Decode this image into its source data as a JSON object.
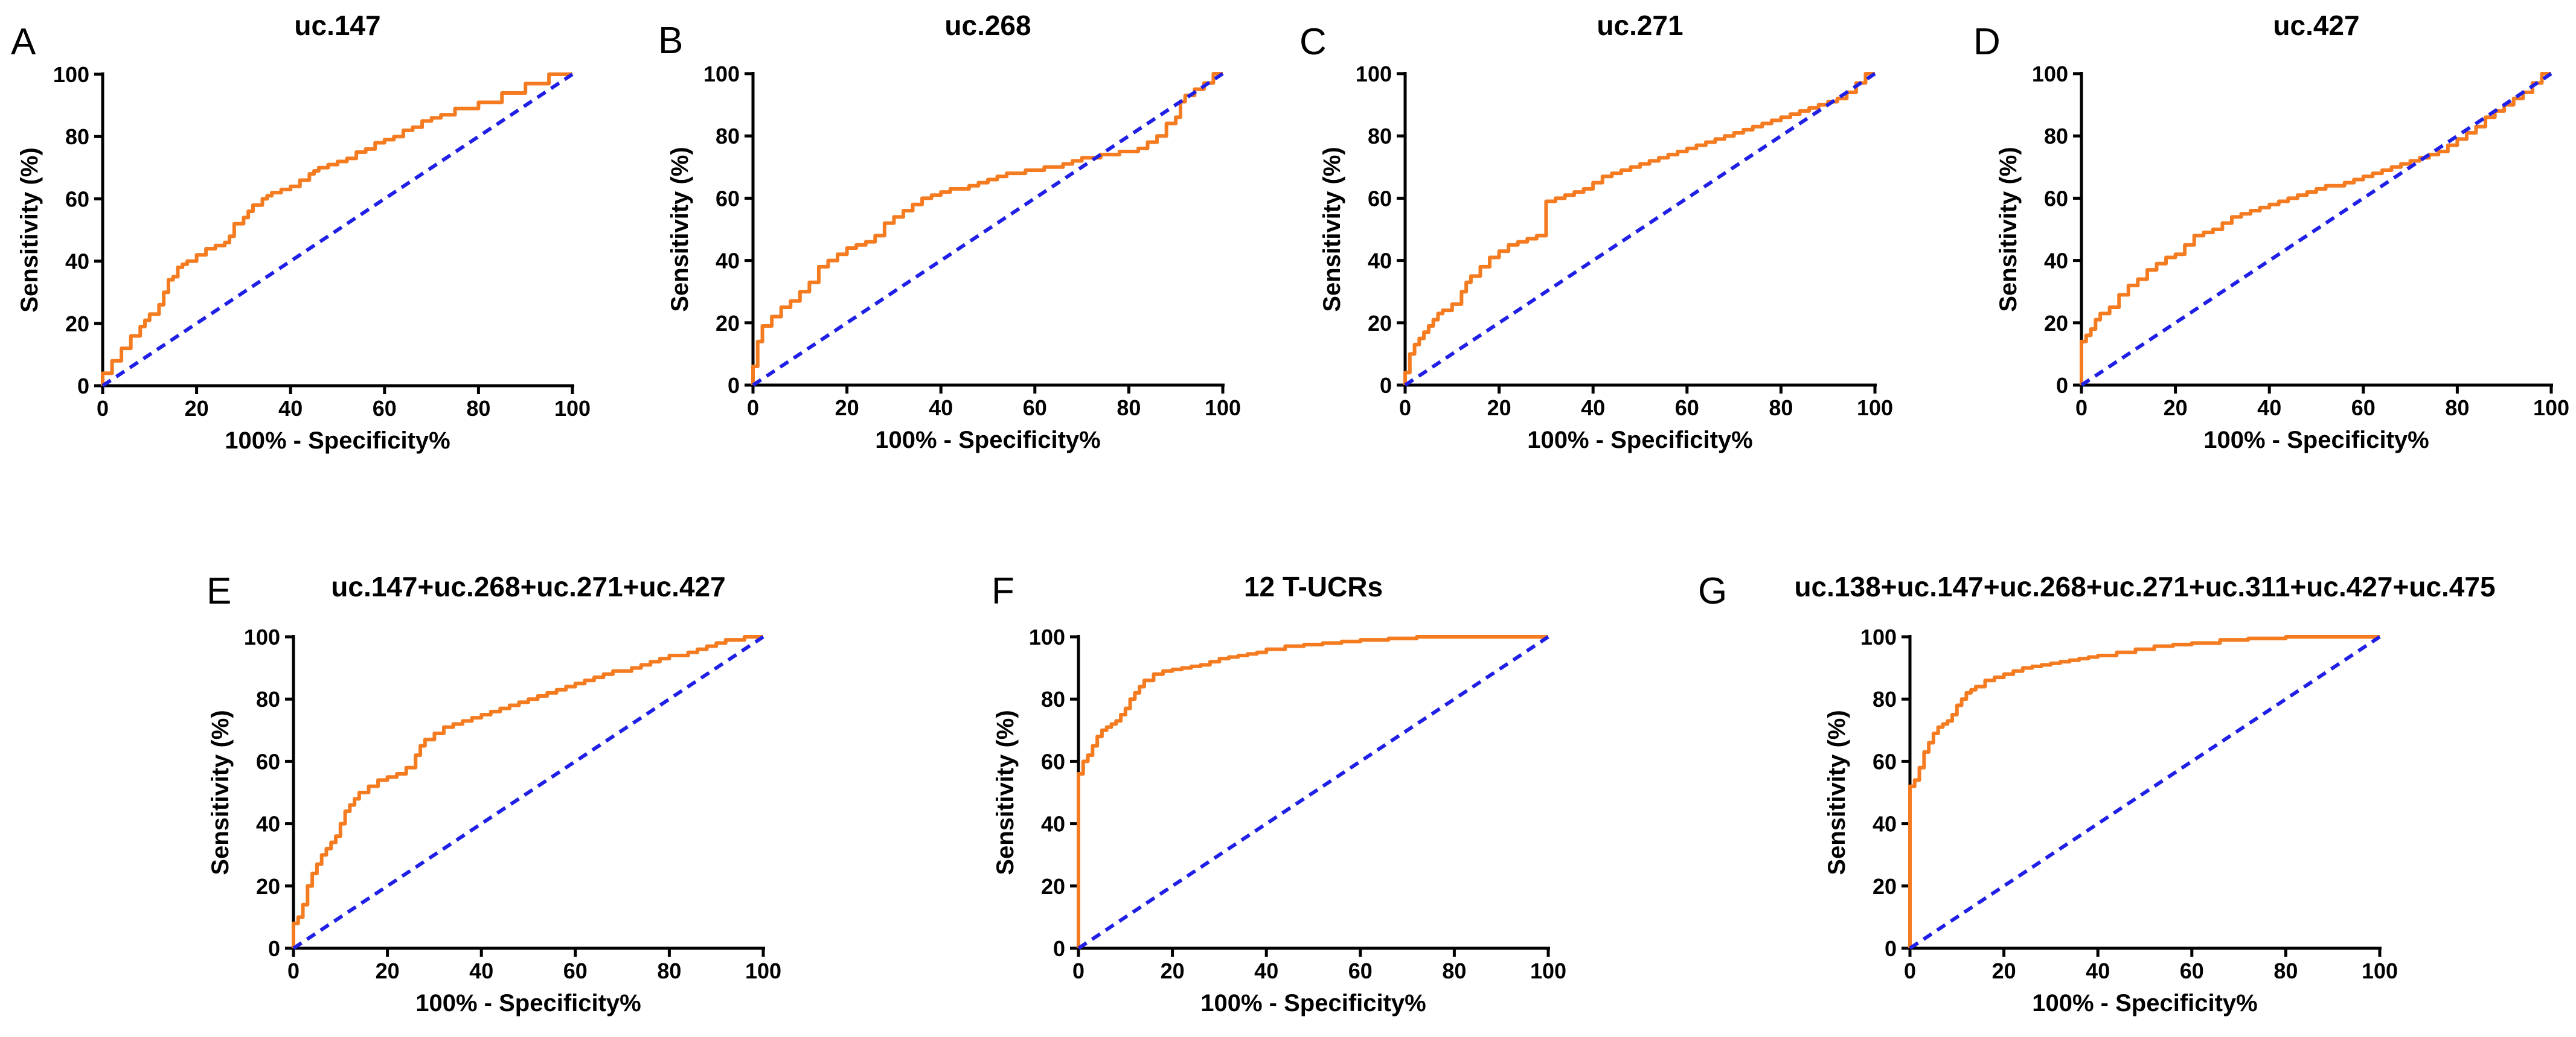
{
  "colors": {
    "roc": "#f47b20",
    "reference": "#1f1fe6",
    "axis": "#000000"
  },
  "chart_data": [
    {
      "type": "line",
      "panel": "A",
      "title": "uc.147",
      "xlabel": "100% - Specificity%",
      "ylabel": "Sensitivity (%)",
      "xlim": [
        0,
        100
      ],
      "ylim": [
        0,
        100
      ],
      "xticks": [
        "0",
        "20",
        "40",
        "60",
        "80",
        "100"
      ],
      "yticks": [
        "0",
        "20",
        "40",
        "60",
        "80",
        "100"
      ],
      "series": [
        {
          "name": "ROC",
          "x": [
            0,
            2,
            4,
            6,
            8,
            9,
            10,
            12,
            13,
            14,
            15,
            16,
            17,
            18,
            20,
            22,
            24,
            26,
            27,
            28,
            30,
            31,
            32,
            34,
            35,
            36,
            38,
            40,
            42,
            44,
            45,
            46,
            48,
            50,
            52,
            54,
            56,
            58,
            60,
            62,
            64,
            66,
            68,
            70,
            72,
            75,
            80,
            85,
            90,
            95,
            100
          ],
          "y": [
            0,
            4,
            8,
            12,
            16,
            19,
            21,
            23,
            26,
            30,
            34,
            35,
            38,
            39,
            40,
            42,
            44,
            45,
            46,
            48,
            52,
            54,
            56,
            58,
            60,
            61,
            62,
            63,
            64,
            66,
            68,
            69,
            70,
            71,
            72,
            73,
            75,
            76,
            78,
            79,
            80,
            82,
            83,
            85,
            86,
            87,
            89,
            91,
            94,
            97,
            100
          ]
        },
        {
          "name": "Reference",
          "x": [
            0,
            100
          ],
          "y": [
            0,
            100
          ]
        }
      ]
    },
    {
      "type": "line",
      "panel": "B",
      "title": "uc.268",
      "xlabel": "100% - Specificity%",
      "ylabel": "Sensitivity (%)",
      "xlim": [
        0,
        100
      ],
      "ylim": [
        0,
        100
      ],
      "xticks": [
        "0",
        "20",
        "40",
        "60",
        "80",
        "100"
      ],
      "yticks": [
        "0",
        "20",
        "40",
        "60",
        "80",
        "100"
      ],
      "series": [
        {
          "name": "ROC",
          "x": [
            0,
            0,
            1,
            1,
            2,
            2,
            4,
            6,
            8,
            10,
            12,
            14,
            16,
            18,
            20,
            22,
            24,
            26,
            28,
            30,
            32,
            34,
            36,
            38,
            40,
            42,
            44,
            46,
            48,
            50,
            52,
            54,
            56,
            58,
            60,
            62,
            64,
            66,
            68,
            70,
            72,
            74,
            76,
            78,
            80,
            82,
            84,
            86,
            88,
            90,
            91,
            92,
            94,
            96,
            98,
            100
          ],
          "y": [
            0,
            5,
            6,
            12,
            14,
            17,
            19,
            22,
            25,
            27,
            30,
            33,
            38,
            40,
            42,
            44,
            45,
            46,
            48,
            52,
            54,
            56,
            58,
            60,
            61,
            62,
            63,
            63,
            64,
            65,
            66,
            67,
            68,
            68,
            69,
            69,
            70,
            70,
            71,
            72,
            73,
            73,
            74,
            74,
            75,
            75,
            76,
            78,
            80,
            84,
            86,
            91,
            93,
            95,
            97,
            100
          ]
        },
        {
          "name": "Reference",
          "x": [
            0,
            100
          ],
          "y": [
            0,
            100
          ]
        }
      ]
    },
    {
      "type": "line",
      "panel": "C",
      "title": "uc.271",
      "xlabel": "100% - Specificity%",
      "ylabel": "Sensitivity (%)",
      "xlim": [
        0,
        100
      ],
      "ylim": [
        0,
        100
      ],
      "xticks": [
        "0",
        "20",
        "40",
        "60",
        "80",
        "100"
      ],
      "yticks": [
        "0",
        "20",
        "40",
        "60",
        "80",
        "100"
      ],
      "series": [
        {
          "name": "ROC",
          "x": [
            0,
            1,
            2,
            3,
            4,
            5,
            6,
            7,
            8,
            10,
            12,
            13,
            14,
            16,
            18,
            20,
            22,
            24,
            26,
            28,
            30,
            30,
            32,
            34,
            36,
            38,
            40,
            42,
            44,
            46,
            48,
            50,
            52,
            54,
            56,
            58,
            60,
            62,
            64,
            66,
            68,
            70,
            72,
            74,
            76,
            78,
            80,
            82,
            84,
            86,
            88,
            90,
            92,
            94,
            96,
            98,
            100
          ],
          "y": [
            0,
            4,
            10,
            13,
            15,
            17,
            19,
            21,
            23,
            24,
            26,
            30,
            33,
            35,
            38,
            41,
            43,
            45,
            46,
            47,
            48,
            56,
            59,
            60,
            61,
            62,
            63,
            65,
            67,
            68,
            69,
            70,
            71,
            72,
            73,
            74,
            75,
            76,
            77,
            78,
            79,
            80,
            81,
            82,
            83,
            84,
            85,
            86,
            87,
            88,
            89,
            90,
            91,
            92,
            94,
            97,
            100
          ]
        },
        {
          "name": "Reference",
          "x": [
            0,
            100
          ],
          "y": [
            0,
            100
          ]
        }
      ]
    },
    {
      "type": "line",
      "panel": "D",
      "title": "uc.427",
      "xlabel": "100% - Specificity%",
      "ylabel": "Sensitivity (%)",
      "xlim": [
        0,
        100
      ],
      "ylim": [
        0,
        100
      ],
      "xticks": [
        "0",
        "20",
        "40",
        "60",
        "80",
        "100"
      ],
      "yticks": [
        "0",
        "20",
        "40",
        "60",
        "80",
        "100"
      ],
      "series": [
        {
          "name": "ROC",
          "x": [
            0,
            0,
            1,
            2,
            3,
            4,
            6,
            8,
            10,
            12,
            14,
            16,
            18,
            20,
            22,
            24,
            26,
            28,
            30,
            32,
            34,
            36,
            38,
            40,
            42,
            44,
            46,
            48,
            50,
            52,
            54,
            56,
            58,
            60,
            62,
            64,
            66,
            68,
            70,
            72,
            74,
            76,
            78,
            80,
            82,
            84,
            86,
            88,
            90,
            92,
            94,
            96,
            98,
            100
          ],
          "y": [
            0,
            13,
            14,
            16,
            18,
            21,
            23,
            25,
            29,
            32,
            34,
            37,
            39,
            41,
            42,
            45,
            48,
            49,
            50,
            52,
            54,
            55,
            56,
            57,
            58,
            59,
            60,
            61,
            62,
            63,
            64,
            64,
            65,
            66,
            67,
            68,
            69,
            70,
            71,
            72,
            73,
            74,
            75,
            77,
            79,
            81,
            83,
            86,
            88,
            90,
            92,
            94,
            97,
            100
          ]
        },
        {
          "name": "Reference",
          "x": [
            0,
            100
          ],
          "y": [
            0,
            100
          ]
        }
      ]
    },
    {
      "type": "line",
      "panel": "E",
      "title": "uc.147+uc.268+uc.271+uc.427",
      "xlabel": "100% - Specificity%",
      "ylabel": "Sensitivity (%)",
      "xlim": [
        0,
        100
      ],
      "ylim": [
        0,
        100
      ],
      "xticks": [
        "0",
        "20",
        "40",
        "60",
        "80",
        "100"
      ],
      "yticks": [
        "0",
        "20",
        "40",
        "60",
        "80",
        "100"
      ],
      "series": [
        {
          "name": "ROC",
          "x": [
            0,
            0,
            1,
            2,
            3,
            4,
            5,
            6,
            7,
            8,
            9,
            10,
            11,
            12,
            13,
            14,
            16,
            18,
            20,
            22,
            24,
            26,
            27,
            28,
            30,
            32,
            34,
            36,
            38,
            40,
            42,
            44,
            46,
            48,
            50,
            52,
            54,
            56,
            58,
            60,
            62,
            64,
            66,
            68,
            70,
            72,
            74,
            76,
            78,
            80,
            82,
            84,
            86,
            88,
            90,
            92,
            94,
            96,
            98,
            100
          ],
          "y": [
            0,
            6,
            8,
            10,
            14,
            20,
            24,
            27,
            30,
            32,
            34,
            36,
            40,
            44,
            46,
            48,
            50,
            52,
            54,
            55,
            56,
            58,
            62,
            65,
            67,
            69,
            71,
            72,
            73,
            74,
            75,
            76,
            77,
            78,
            79,
            80,
            81,
            82,
            83,
            84,
            85,
            86,
            87,
            88,
            89,
            89,
            90,
            91,
            92,
            93,
            94,
            94,
            95,
            96,
            97,
            98,
            99,
            99,
            100,
            100
          ]
        },
        {
          "name": "Reference",
          "x": [
            0,
            100
          ],
          "y": [
            0,
            100
          ]
        }
      ]
    },
    {
      "type": "line",
      "panel": "F",
      "title": "12 T-UCRs",
      "xlabel": "100% - Specificity%",
      "ylabel": "Sensitivity (%)",
      "xlim": [
        0,
        100
      ],
      "ylim": [
        0,
        100
      ],
      "xticks": [
        "0",
        "20",
        "40",
        "60",
        "80",
        "100"
      ],
      "yticks": [
        "0",
        "20",
        "40",
        "60",
        "80",
        "100"
      ],
      "series": [
        {
          "name": "ROC",
          "x": [
            0,
            0,
            1,
            2,
            3,
            4,
            5,
            6,
            7,
            8,
            9,
            10,
            11,
            12,
            13,
            14,
            16,
            18,
            20,
            22,
            24,
            26,
            28,
            30,
            32,
            34,
            36,
            38,
            40,
            44,
            48,
            52,
            56,
            60,
            66,
            72,
            80,
            90,
            100
          ],
          "y": [
            0,
            51,
            56,
            60,
            62,
            65,
            68,
            70,
            71,
            72,
            73,
            75,
            77,
            80,
            82,
            84,
            86,
            88,
            89,
            89.5,
            90,
            90.5,
            91,
            92,
            93,
            93.5,
            94,
            94.5,
            95,
            96,
            97,
            97.5,
            98,
            98.5,
            99,
            99.5,
            100,
            100,
            100
          ]
        },
        {
          "name": "Reference",
          "x": [
            0,
            100
          ],
          "y": [
            0,
            100
          ]
        }
      ]
    },
    {
      "type": "line",
      "panel": "G",
      "title": "uc.138+uc.147+uc.268+uc.271+uc.311+uc.427+uc.475",
      "xlabel": "100% - Specificity%",
      "ylabel": "Sensitivity (%)",
      "xlim": [
        0,
        100
      ],
      "ylim": [
        0,
        100
      ],
      "xticks": [
        "0",
        "20",
        "40",
        "60",
        "80",
        "100"
      ],
      "yticks": [
        "0",
        "20",
        "40",
        "60",
        "80",
        "100"
      ],
      "series": [
        {
          "name": "ROC",
          "x": [
            0,
            0,
            1,
            2,
            3,
            4,
            5,
            6,
            7,
            8,
            9,
            10,
            11,
            12,
            13,
            14,
            16,
            18,
            20,
            22,
            24,
            26,
            28,
            30,
            32,
            34,
            36,
            38,
            40,
            44,
            48,
            52,
            56,
            60,
            66,
            72,
            80,
            90,
            100
          ],
          "y": [
            0,
            50,
            52,
            54,
            58,
            63,
            66,
            69,
            71,
            72,
            73,
            75,
            78,
            80,
            82,
            83,
            84,
            86,
            87,
            88,
            89,
            90,
            90.5,
            91,
            91.5,
            92,
            92.5,
            93,
            93.5,
            94,
            95,
            96,
            97,
            97.5,
            98,
            99,
            99.5,
            100,
            100
          ]
        },
        {
          "name": "Reference",
          "x": [
            0,
            100
          ],
          "y": [
            0,
            100
          ]
        }
      ]
    }
  ]
}
